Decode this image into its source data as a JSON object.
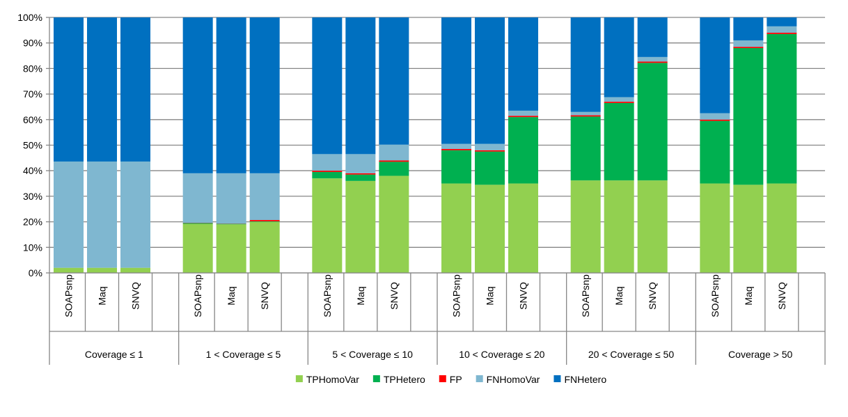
{
  "chart_data": {
    "type": "bar",
    "stacked": true,
    "percent": true,
    "yticks": [
      "0%",
      "10%",
      "20%",
      "30%",
      "40%",
      "50%",
      "60%",
      "70%",
      "80%",
      "90%",
      "100%"
    ],
    "ylim": [
      0,
      100
    ],
    "grid": true,
    "legend_position": "bottom",
    "groups": [
      {
        "label": "Coverage ≤ 1",
        "categories": [
          "SOAPsnp",
          "Maq",
          "SNVQ"
        ]
      },
      {
        "label": "1 < Coverage ≤ 5",
        "categories": [
          "SOAPsnp",
          "Maq",
          "SNVQ"
        ]
      },
      {
        "label": "5 < Coverage ≤ 10",
        "categories": [
          "SOAPsnp",
          "Maq",
          "SNVQ"
        ]
      },
      {
        "label": "10 < Coverage ≤ 20",
        "categories": [
          "SOAPsnp",
          "Maq",
          "SNVQ"
        ]
      },
      {
        "label": "20 < Coverage ≤ 50",
        "categories": [
          "SOAPsnp",
          "Maq",
          "SNVQ"
        ]
      },
      {
        "label": "Coverage > 50",
        "categories": [
          "SOAPsnp",
          "Maq",
          "SNVQ"
        ]
      }
    ],
    "series": [
      {
        "name": "TPHomoVar",
        "color": "#92d050",
        "values": [
          2,
          2,
          2,
          19.2,
          19,
          20,
          37,
          36,
          38,
          35,
          34.5,
          35,
          36.2,
          36.2,
          36.2,
          35,
          34.5,
          35
        ]
      },
      {
        "name": "TPHetero",
        "color": "#00b050",
        "values": [
          0,
          0,
          0,
          0.3,
          0.2,
          0.2,
          2.5,
          2.5,
          5.5,
          13,
          13,
          26,
          25,
          30.3,
          46,
          24.5,
          53.5,
          58.5
        ]
      },
      {
        "name": "FP",
        "color": "#ff0000",
        "values": [
          0,
          0,
          0,
          0.1,
          0.1,
          0.5,
          0.5,
          0.5,
          0.5,
          0.5,
          0.5,
          0.5,
          0.5,
          0.5,
          0.5,
          0.5,
          0.5,
          0.5
        ]
      },
      {
        "name": "FNHomoVar",
        "color": "#7fb7d0",
        "values": [
          41.6,
          41.6,
          41.6,
          19.4,
          19.7,
          18.3,
          6.5,
          7.5,
          6.2,
          2,
          2.5,
          2,
          1.3,
          1.8,
          1.8,
          2.5,
          2.5,
          2.5
        ]
      },
      {
        "name": "FNHetero",
        "color": "#0070c0",
        "values": [
          56.4,
          56.4,
          56.4,
          61,
          61,
          61,
          53.5,
          53.5,
          49.8,
          49.5,
          49.5,
          36.5,
          37,
          31.2,
          15.5,
          37.5,
          9,
          3.5
        ]
      }
    ]
  }
}
